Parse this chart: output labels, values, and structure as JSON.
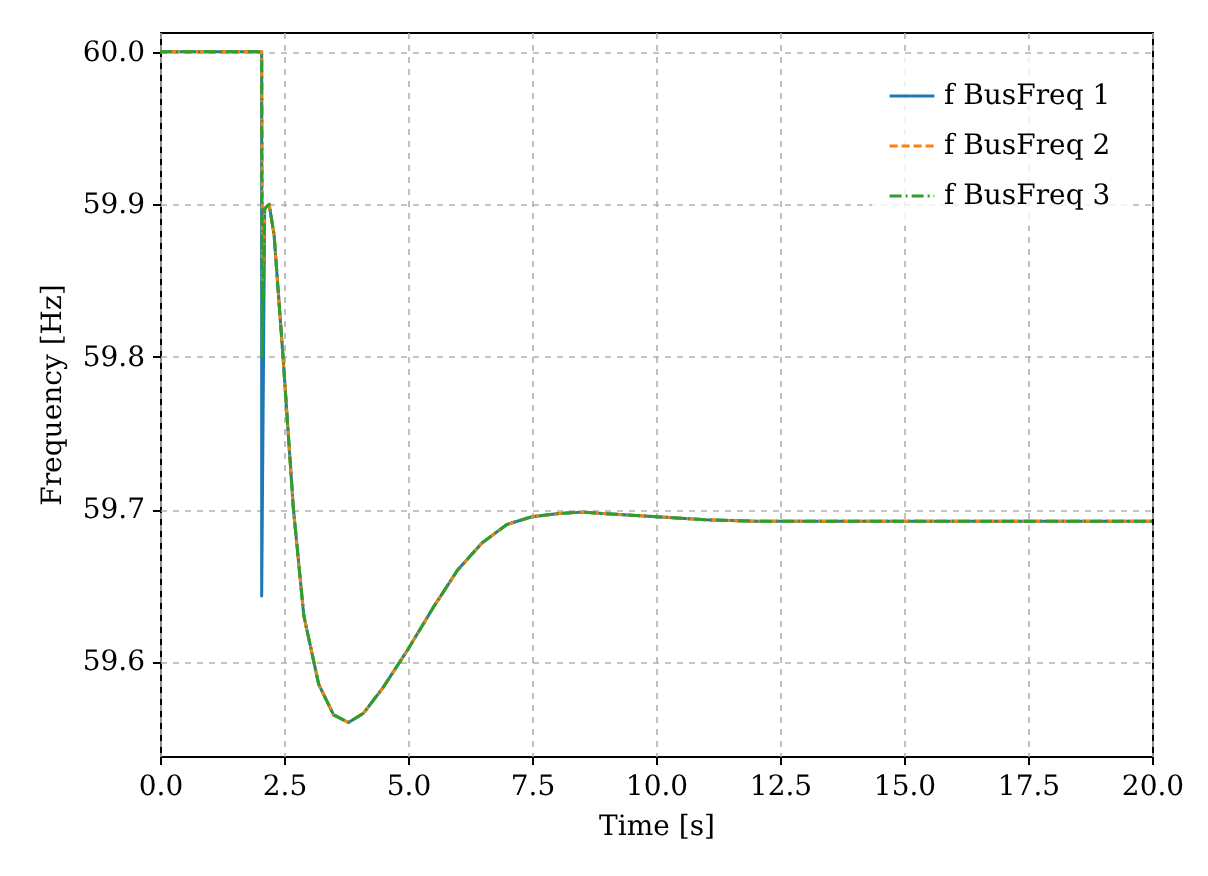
{
  "chart_data": {
    "type": "line",
    "xlabel": "Time [s]",
    "ylabel": "Frequency [Hz]",
    "xlim": [
      0,
      20
    ],
    "ylim": [
      59.538,
      60.013
    ],
    "xticks": [
      {
        "value": 0,
        "label": "0.0"
      },
      2.5,
      {
        "value": 5,
        "label": "5.0"
      },
      7.5,
      {
        "value": 10,
        "label": "10.0"
      },
      12.5,
      {
        "value": 15,
        "label": "15.0"
      },
      17.5,
      {
        "value": 20,
        "label": "20.0"
      }
    ],
    "yticks": [
      59.6,
      59.7,
      59.8,
      59.9,
      {
        "value": 60,
        "label": "60.0"
      }
    ],
    "grid": true,
    "legend": "top right",
    "series": [
      {
        "name": "f BusFreq 1",
        "color": "#1f77b4",
        "line_style": "solid",
        "x": [
          0,
          2.05,
          2.05,
          2.11,
          2.2,
          2.3,
          2.48,
          2.69,
          2.9,
          3.2,
          3.5,
          3.8,
          4.1,
          4.5,
          5.0,
          5.5,
          6.0,
          6.5,
          7.0,
          7.5,
          8.0,
          8.5,
          9.0,
          10.0,
          11.0,
          12.0,
          20.0
        ],
        "values": [
          60,
          60,
          59.643,
          59.897,
          59.9,
          59.88,
          59.8,
          59.7,
          59.63,
          59.585,
          59.565,
          59.56,
          59.566,
          59.583,
          59.608,
          59.635,
          59.66,
          59.678,
          59.69,
          59.695,
          59.697,
          59.698,
          59.697,
          59.695,
          59.693,
          59.692,
          59.692
        ]
      },
      {
        "name": "f BusFreq 2",
        "color": "#ff7f0e",
        "line_style": "dashed",
        "x": [
          0,
          2.05,
          2.07,
          2.11,
          2.2,
          2.3,
          2.48,
          2.69,
          2.9,
          3.2,
          3.5,
          3.8,
          4.1,
          4.5,
          5.0,
          5.5,
          6.0,
          6.5,
          7.0,
          7.5,
          8.0,
          8.5,
          9.0,
          10.0,
          11.0,
          12.0,
          20.0
        ],
        "values": [
          60,
          60,
          59.85,
          59.897,
          59.9,
          59.88,
          59.8,
          59.7,
          59.63,
          59.585,
          59.565,
          59.56,
          59.566,
          59.583,
          59.608,
          59.635,
          59.66,
          59.678,
          59.69,
          59.695,
          59.697,
          59.698,
          59.697,
          59.695,
          59.693,
          59.692,
          59.692
        ]
      },
      {
        "name": "f BusFreq 3",
        "color": "#2ca02c",
        "line_style": "dashdot",
        "x": [
          0,
          2.05,
          2.06,
          2.11,
          2.2,
          2.3,
          2.48,
          2.69,
          2.9,
          3.2,
          3.5,
          3.8,
          4.1,
          4.5,
          5.0,
          5.5,
          6.0,
          6.5,
          7.0,
          7.5,
          8.0,
          8.5,
          9.0,
          10.0,
          11.0,
          12.0,
          20.0
        ],
        "values": [
          60,
          60,
          59.8,
          59.897,
          59.9,
          59.88,
          59.8,
          59.7,
          59.63,
          59.585,
          59.565,
          59.56,
          59.566,
          59.583,
          59.608,
          59.635,
          59.66,
          59.678,
          59.69,
          59.695,
          59.697,
          59.698,
          59.697,
          59.695,
          59.693,
          59.692,
          59.692
        ]
      }
    ]
  }
}
